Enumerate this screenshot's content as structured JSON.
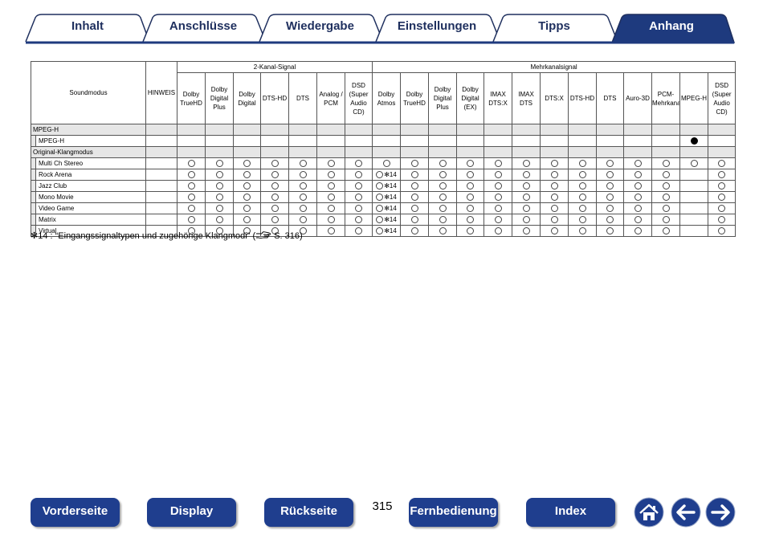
{
  "tabs": [
    {
      "label": "Inhalt",
      "active": false
    },
    {
      "label": "Anschlüsse",
      "active": false
    },
    {
      "label": "Wiedergabe",
      "active": false
    },
    {
      "label": "Einstellungen",
      "active": false
    },
    {
      "label": "Tipps",
      "active": false
    },
    {
      "label": "Anhang",
      "active": true
    }
  ],
  "table": {
    "col_soundmodus": "Soundmodus",
    "col_hinweis": "HINWEIS",
    "group_2ch": "2-Kanal-Signal",
    "group_multi": "Mehrkanalsignal",
    "cols_2ch": [
      [
        "Dolby",
        "TrueHD"
      ],
      [
        "Dolby",
        "Digital",
        "Plus"
      ],
      [
        "Dolby",
        "Digital"
      ],
      [
        "DTS-HD"
      ],
      [
        "DTS"
      ],
      [
        "Analog /",
        "PCM"
      ],
      [
        "DSD",
        "(Super",
        "Audio",
        "CD)"
      ]
    ],
    "cols_multi": [
      [
        "Dolby",
        "Atmos"
      ],
      [
        "Dolby",
        "TrueHD"
      ],
      [
        "Dolby",
        "Digital",
        "Plus"
      ],
      [
        "Dolby",
        "Digital",
        "(EX)"
      ],
      [
        "IMAX",
        "DTS:X"
      ],
      [
        "IMAX",
        "DTS"
      ],
      [
        "DTS:X"
      ],
      [
        "DTS-HD"
      ],
      [
        "DTS"
      ],
      [
        "Auro-3D"
      ],
      [
        "PCM-",
        "Mehrkanal"
      ],
      [
        "MPEG-H"
      ],
      [
        "DSD",
        "(Super",
        "Audio",
        "CD)"
      ]
    ],
    "rows": [
      {
        "type": "section",
        "label": "MPEG-H"
      },
      {
        "type": "item",
        "label": "MPEG-H",
        "cells": [
          "",
          "",
          "",
          "",
          "",
          "",
          "",
          "",
          "",
          "",
          "",
          "",
          "",
          "",
          "",
          "",
          "",
          "",
          "",
          "filled",
          ""
        ]
      },
      {
        "type": "section",
        "label": "Original-Klangmodus"
      },
      {
        "type": "item",
        "label": "Multi Ch Stereo",
        "cells": [
          "",
          "o",
          "o",
          "o",
          "o",
          "o",
          "o",
          "o",
          "o",
          "o",
          "o",
          "o",
          "o",
          "o",
          "o",
          "o",
          "o",
          "o",
          "o",
          "o",
          "o"
        ]
      },
      {
        "type": "item",
        "label": "Rock Arena",
        "cells": [
          "",
          "o",
          "o",
          "o",
          "o",
          "o",
          "o",
          "o",
          "o14",
          "o",
          "o",
          "o",
          "o",
          "o",
          "o",
          "o",
          "o",
          "o",
          "o",
          "",
          "o"
        ]
      },
      {
        "type": "item",
        "label": "Jazz Club",
        "cells": [
          "",
          "o",
          "o",
          "o",
          "o",
          "o",
          "o",
          "o",
          "o14",
          "o",
          "o",
          "o",
          "o",
          "o",
          "o",
          "o",
          "o",
          "o",
          "o",
          "",
          "o"
        ]
      },
      {
        "type": "item",
        "label": "Mono Movie",
        "cells": [
          "",
          "o",
          "o",
          "o",
          "o",
          "o",
          "o",
          "o",
          "o14",
          "o",
          "o",
          "o",
          "o",
          "o",
          "o",
          "o",
          "o",
          "o",
          "o",
          "",
          "o"
        ]
      },
      {
        "type": "item",
        "label": "Video Game",
        "cells": [
          "",
          "o",
          "o",
          "o",
          "o",
          "o",
          "o",
          "o",
          "o14",
          "o",
          "o",
          "o",
          "o",
          "o",
          "o",
          "o",
          "o",
          "o",
          "o",
          "",
          "o"
        ]
      },
      {
        "type": "item",
        "label": "Matrix",
        "cells": [
          "",
          "o",
          "o",
          "o",
          "o",
          "o",
          "o",
          "o",
          "o14",
          "o",
          "o",
          "o",
          "o",
          "o",
          "o",
          "o",
          "o",
          "o",
          "o",
          "",
          "o"
        ]
      },
      {
        "type": "item",
        "label": "Virtual",
        "cells": [
          "",
          "o",
          "o",
          "o",
          "o",
          "o",
          "o",
          "o",
          "o14",
          "o",
          "o",
          "o",
          "o",
          "o",
          "o",
          "o",
          "o",
          "o",
          "o",
          "",
          "o"
        ]
      }
    ],
    "note_mark": "✻14"
  },
  "footnote": {
    "prefix": "✻14 : “Eingangssignaltypen und zugehörige Klangmodi” (",
    "ref": "S. 316)"
  },
  "nav": {
    "front": "Vorderseite",
    "display": "Display",
    "back": "Rückseite",
    "page": "315",
    "remote": "Fernbedienung",
    "index": "Index"
  },
  "colors": {
    "nav_blue": "#1f3e8e",
    "tab_text": "#1e2f5e",
    "tab_active": "#1e3a7e"
  },
  "icons": {
    "home": "home-icon",
    "back": "arrow-left-icon",
    "forward": "arrow-right-icon",
    "reference": "pointing-hand-icon"
  }
}
